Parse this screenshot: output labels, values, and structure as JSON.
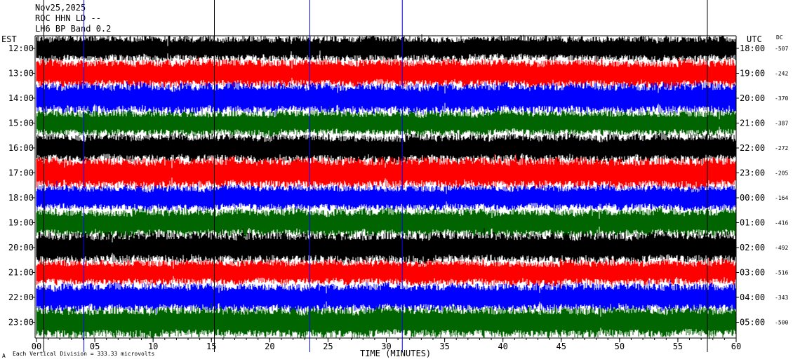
{
  "header": {
    "date": "Nov25,2025",
    "station": "ROC HHN LD --",
    "filter": "LH6 BP Band 0.2"
  },
  "chart_data": {
    "type": "line",
    "title": "",
    "xlabel": "TIME (MINUTES)",
    "left_axis_title": "EST",
    "right_axis_title": "UTC",
    "dc_title": "DC",
    "xlim": [
      0,
      60
    ],
    "x_ticks": [
      "00",
      "05",
      "10",
      "15",
      "20",
      "25",
      "30",
      "35",
      "40",
      "45",
      "50",
      "55",
      "60"
    ],
    "left_labels": [
      "12:00",
      "13:00",
      "14:00",
      "15:00",
      "16:00",
      "17:00",
      "18:00",
      "19:00",
      "20:00",
      "21:00",
      "22:00",
      "23:00"
    ],
    "right_labels": [
      "18:00",
      "19:00",
      "20:00",
      "21:00",
      "22:00",
      "23:00",
      "00:00",
      "01:00",
      "02:00",
      "03:00",
      "04:00",
      "05:00"
    ],
    "dc_offsets": [
      "-507",
      "-242",
      "-370",
      "-387",
      "-272",
      "-205",
      "-164",
      "-416",
      "-492",
      "-516",
      "-343",
      "-500"
    ],
    "trace_colors": [
      "#000000",
      "#ff0000",
      "#0000ff",
      "#006400"
    ],
    "footnote_mark": "A",
    "footnote": "Each Vertical Division = 333.33 microvolts",
    "grid": false
  }
}
